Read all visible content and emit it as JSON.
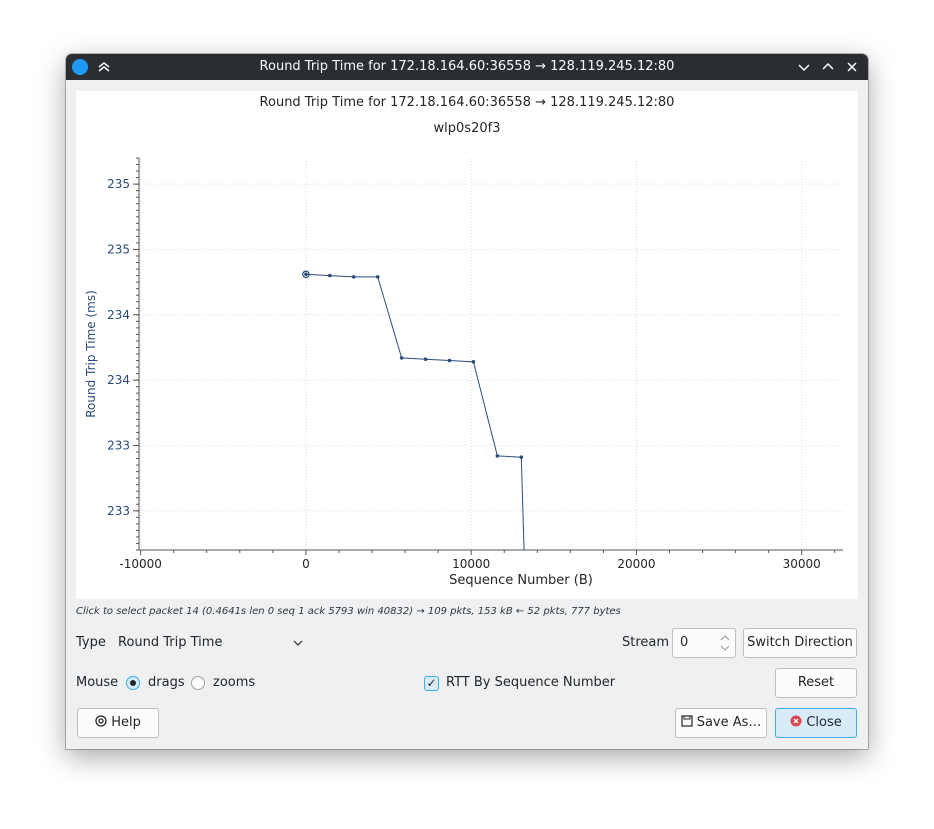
{
  "window": {
    "title": "Round Trip Time for 172.18.164.60:36558 → 128.119.245.12:80",
    "buttons": {
      "minimize_icon": "chevron-down-icon",
      "maximize_icon": "chevron-up-icon",
      "close_icon": "close-icon",
      "keep_above_icon": "double-chevron-up-icon"
    }
  },
  "plot": {
    "title": "Round Trip Time for 172.18.164.60:36558 → 128.119.245.12:80",
    "subtitle": "wlp0s20f3"
  },
  "chart_data": {
    "type": "line",
    "title": "Round Trip Time for 172.18.164.60:36558 → 128.119.245.12:80",
    "subtitle": "wlp0s20f3",
    "xlabel": "Sequence Number (B)",
    "ylabel": "Round Trip Time (ms)",
    "xlim": [
      -10100,
      32500
    ],
    "ylim": [
      232.45,
      235.45
    ],
    "x_ticks": [
      -10000,
      0,
      10000,
      20000,
      30000
    ],
    "x_tick_labels": [
      "-10000",
      "0",
      "10000",
      "20000",
      "30000"
    ],
    "y_ticks": [
      232.75,
      233.25,
      233.75,
      234.25,
      234.75,
      235.25
    ],
    "y_tick_labels": [
      "233",
      "233",
      "234",
      "234",
      "235",
      "235"
    ],
    "grid": true,
    "accent_color": "#2a4c7a",
    "series": [
      {
        "x": [
          1,
          1449,
          2897,
          4345,
          5793,
          7241,
          8689,
          10137,
          11585,
          13033,
          13200
        ],
        "y": [
          234.56,
          234.55,
          234.54,
          234.54,
          233.92,
          233.91,
          233.9,
          233.89,
          233.17,
          233.16,
          232.45
        ]
      }
    ],
    "selected_point_index": 0
  },
  "status": {
    "hint": "Click to select packet 14 (0.4641s len 0 seq 1 ack 5793 win 40832) → 109 pkts, 153 kB ← 52 pkts, 777 bytes"
  },
  "controls": {
    "type_label": "Type",
    "type_value": "Round Trip Time",
    "stream_label": "Stream",
    "stream_value": "0",
    "switch_direction": "Switch Direction",
    "mouse_label": "Mouse",
    "drags_label": "drags",
    "zooms_label": "zooms",
    "rtt_by_seq_label": "RTT By Sequence Number",
    "reset": "Reset",
    "help": "Help",
    "save_as": "Save As…",
    "close": "Close"
  }
}
